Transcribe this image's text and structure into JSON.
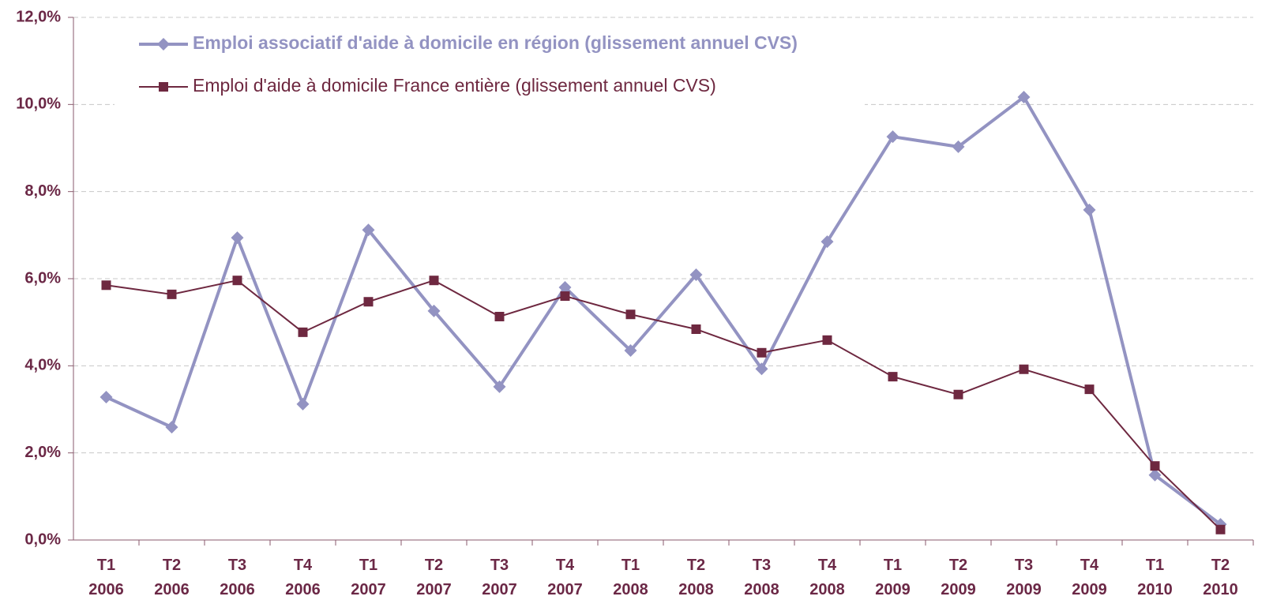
{
  "chart_data": {
    "type": "line",
    "categories": [
      "T1 2006",
      "T2 2006",
      "T3 2006",
      "T4 2006",
      "T1 2007",
      "T2 2007",
      "T3 2007",
      "T4 2007",
      "T1 2008",
      "T2 2008",
      "T3 2008",
      "T4 2008",
      "T1 2009",
      "T2 2009",
      "T3 2009",
      "T4 2009",
      "T1 2010",
      "T2 2010"
    ],
    "series": [
      {
        "name": "Emploi associatif d'aide à domicile en région (glissement annuel CVS)",
        "color": "#9393c2",
        "marker": "diamond",
        "values": [
          3.28,
          2.59,
          6.94,
          3.12,
          7.12,
          5.26,
          3.52,
          5.8,
          4.35,
          6.09,
          3.93,
          6.85,
          9.26,
          9.03,
          10.17,
          7.58,
          1.49,
          0.36
        ]
      },
      {
        "name": "Emploi d'aide à domicile France entière (glissement annuel CVS)",
        "color": "#6e2840",
        "marker": "square",
        "values": [
          5.85,
          5.64,
          5.96,
          4.77,
          5.47,
          5.96,
          5.13,
          5.6,
          5.18,
          4.84,
          4.3,
          4.59,
          3.75,
          3.34,
          3.92,
          3.46,
          1.7,
          0.24
        ]
      }
    ],
    "ylim": [
      0,
      12
    ],
    "yticks": [
      {
        "value": 0,
        "label": "0,0%"
      },
      {
        "value": 2,
        "label": "2,0%"
      },
      {
        "value": 4,
        "label": "4,0%"
      },
      {
        "value": 6,
        "label": "6,0%"
      },
      {
        "value": 8,
        "label": "8,0%"
      },
      {
        "value": 10,
        "label": "10,0%"
      },
      {
        "value": 12,
        "label": "12,0%"
      }
    ],
    "grid": true
  }
}
